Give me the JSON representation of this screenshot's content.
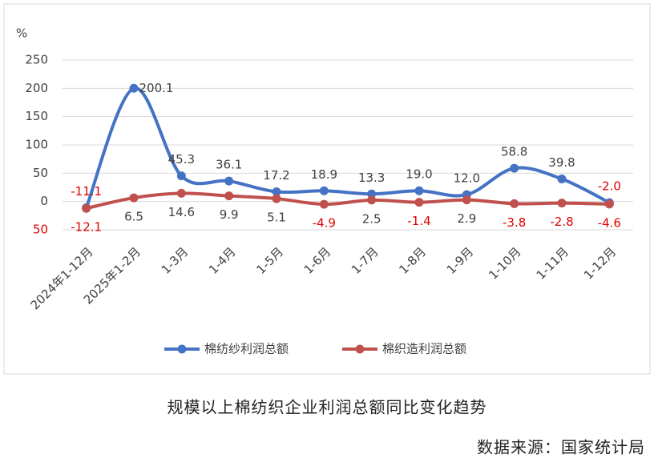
{
  "chart_data": {
    "type": "line",
    "unit": "%",
    "title": "规模以上棉纺织企业利润总额同比变化趋势",
    "source": "数据来源：国家统计局",
    "categories": [
      "2024年1-12月",
      "2025年1-2月",
      "1-3月",
      "1-4月",
      "1-5月",
      "1-6月",
      "1-7月",
      "1-8月",
      "1-9月",
      "1-10月",
      "1-11月",
      "1-12月"
    ],
    "series": [
      {
        "name": "棉纺纱利润总额",
        "color": "#4472c4",
        "values": [
          -11.1,
          200.1,
          45.3,
          36.1,
          17.2,
          18.9,
          13.3,
          19.0,
          12.0,
          58.8,
          39.8,
          -2.0
        ],
        "value_labels": [
          "-11.1",
          "200.1",
          "45.3",
          "36.1",
          "17.2",
          "18.9",
          "13.3",
          "19.0",
          "12.0",
          "58.8",
          "39.8",
          "-2.0"
        ]
      },
      {
        "name": "棉织造利润总额",
        "color": "#c0504d",
        "values": [
          -12.1,
          6.5,
          14.6,
          9.9,
          5.1,
          -4.9,
          2.5,
          -1.4,
          2.9,
          -3.8,
          -2.8,
          -4.6
        ],
        "value_labels": [
          "-12.1",
          "6.5",
          "14.6",
          "9.9",
          "5.1",
          "-4.9",
          "2.5",
          "-1.4",
          "2.9",
          "-3.8",
          "-2.8",
          "-4.6"
        ]
      }
    ],
    "ylim": [
      -50,
      250
    ],
    "yticks": [
      {
        "value": -50,
        "label": "50"
      },
      0,
      50,
      100,
      150,
      200,
      250
    ],
    "negative_color": "#e00000",
    "grid": true,
    "smooth": true,
    "legend": "bottom"
  }
}
